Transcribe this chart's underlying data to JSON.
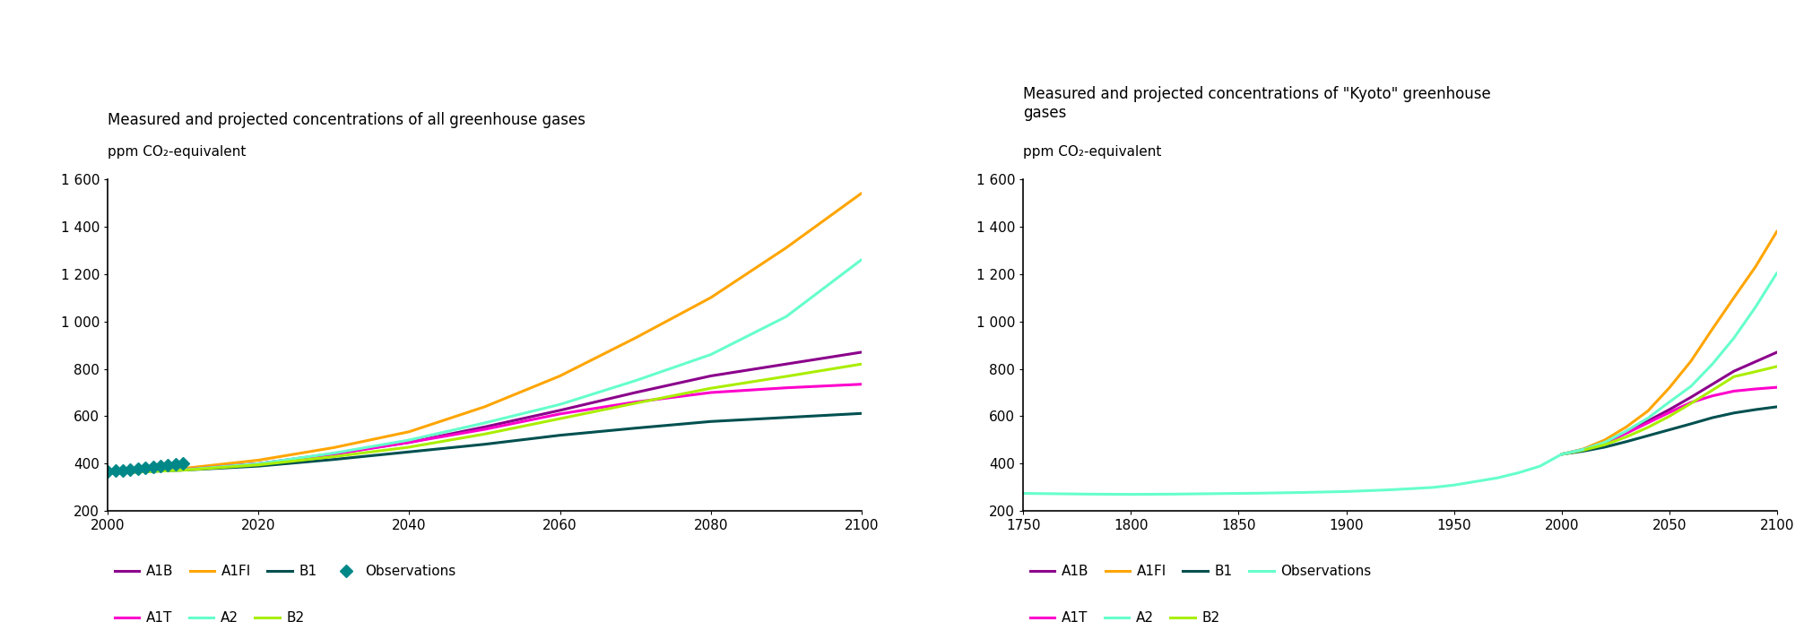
{
  "title_left": "Measured and projected concentrations of all greenhouse gases",
  "title_right": "Measured and projected concentrations of \"Kyoto\" greenhouse\ngases",
  "ylabel": "ppm CO₂-equivalent",
  "colors": {
    "A1B": "#8B008B",
    "A1FI": "#FFA500",
    "B1": "#005050",
    "A1T": "#FF00CC",
    "A2": "#66FFCC",
    "B2": "#AAEE00",
    "Observations": "#008888"
  },
  "left_xlim": [
    2000,
    2100
  ],
  "left_ylim": [
    200,
    1600
  ],
  "right_xlim": [
    1750,
    2100
  ],
  "right_ylim": [
    200,
    1600
  ],
  "left_xticks": [
    2000,
    2020,
    2040,
    2060,
    2080,
    2100
  ],
  "right_xticks": [
    1750,
    1800,
    1850,
    1900,
    1950,
    2000,
    2050,
    2100
  ],
  "yticks": [
    200,
    400,
    600,
    800,
    1000,
    1200,
    1400,
    1600
  ],
  "left_scenarios": {
    "A1B": {
      "x": [
        2000,
        2010,
        2020,
        2030,
        2040,
        2050,
        2060,
        2070,
        2080,
        2090,
        2100
      ],
      "y": [
        360,
        375,
        400,
        443,
        490,
        555,
        625,
        700,
        770,
        820,
        870
      ]
    },
    "A1FI": {
      "x": [
        2000,
        2010,
        2020,
        2030,
        2040,
        2050,
        2060,
        2070,
        2080,
        2090,
        2100
      ],
      "y": [
        360,
        380,
        415,
        468,
        535,
        640,
        770,
        930,
        1100,
        1310,
        1540
      ]
    },
    "B1": {
      "x": [
        2000,
        2010,
        2020,
        2030,
        2040,
        2050,
        2060,
        2070,
        2080,
        2090,
        2100
      ],
      "y": [
        360,
        373,
        390,
        418,
        450,
        482,
        520,
        550,
        578,
        595,
        612
      ]
    },
    "A1T": {
      "x": [
        2000,
        2010,
        2020,
        2030,
        2040,
        2050,
        2060,
        2070,
        2080,
        2090,
        2100
      ],
      "y": [
        360,
        375,
        400,
        440,
        490,
        545,
        610,
        660,
        700,
        720,
        735
      ]
    },
    "A2": {
      "x": [
        2000,
        2010,
        2020,
        2030,
        2040,
        2050,
        2060,
        2070,
        2080,
        2090,
        2100
      ],
      "y": [
        360,
        374,
        400,
        445,
        500,
        572,
        650,
        750,
        860,
        1020,
        1260
      ]
    },
    "B2": {
      "x": [
        2000,
        2010,
        2020,
        2030,
        2040,
        2050,
        2060,
        2070,
        2080,
        2090,
        2100
      ],
      "y": [
        360,
        373,
        395,
        430,
        470,
        525,
        590,
        655,
        718,
        768,
        820
      ]
    }
  },
  "left_obs": {
    "x": [
      2000,
      2001,
      2002,
      2003,
      2004,
      2005,
      2006,
      2007,
      2008,
      2009,
      2010
    ],
    "y": [
      368,
      370,
      373,
      376,
      380,
      383,
      387,
      390,
      394,
      397,
      400
    ]
  },
  "right_scenarios": {
    "A1B": {
      "x": [
        2000,
        2010,
        2020,
        2030,
        2040,
        2050,
        2060,
        2070,
        2080,
        2090,
        2100
      ],
      "y": [
        440,
        460,
        490,
        533,
        580,
        628,
        680,
        735,
        790,
        830,
        870
      ]
    },
    "A1FI": {
      "x": [
        2000,
        2010,
        2020,
        2030,
        2040,
        2050,
        2060,
        2070,
        2080,
        2090,
        2100
      ],
      "y": [
        440,
        462,
        500,
        555,
        622,
        720,
        832,
        968,
        1100,
        1230,
        1380
      ]
    },
    "B1": {
      "x": [
        2000,
        2010,
        2020,
        2030,
        2040,
        2050,
        2060,
        2070,
        2080,
        2090,
        2100
      ],
      "y": [
        440,
        453,
        470,
        493,
        518,
        543,
        568,
        594,
        614,
        628,
        640
      ]
    },
    "A1T": {
      "x": [
        2000,
        2010,
        2020,
        2030,
        2040,
        2050,
        2060,
        2070,
        2080,
        2090,
        2100
      ],
      "y": [
        440,
        460,
        488,
        528,
        572,
        616,
        658,
        686,
        706,
        715,
        722
      ]
    },
    "A2": {
      "x": [
        2000,
        2010,
        2020,
        2030,
        2040,
        2050,
        2060,
        2070,
        2080,
        2090,
        2100
      ],
      "y": [
        440,
        460,
        490,
        538,
        592,
        660,
        726,
        820,
        930,
        1060,
        1205
      ]
    },
    "B2": {
      "x": [
        2000,
        2010,
        2020,
        2030,
        2040,
        2050,
        2060,
        2070,
        2080,
        2090,
        2100
      ],
      "y": [
        440,
        457,
        480,
        513,
        553,
        600,
        654,
        710,
        767,
        788,
        810
      ]
    }
  },
  "right_obs": {
    "x": [
      1750,
      1760,
      1780,
      1800,
      1820,
      1840,
      1860,
      1880,
      1900,
      1920,
      1940,
      1950,
      1960,
      1970,
      1980,
      1990,
      2000,
      2005,
      2010
    ],
    "y": [
      275,
      274,
      272,
      271,
      272,
      274,
      276,
      279,
      283,
      290,
      300,
      310,
      325,
      340,
      362,
      390,
      440,
      450,
      460
    ]
  },
  "fontsize_title": 12,
  "fontsize_label": 11,
  "fontsize_tick": 11,
  "fontsize_legend": 11,
  "linewidth": 2.2
}
